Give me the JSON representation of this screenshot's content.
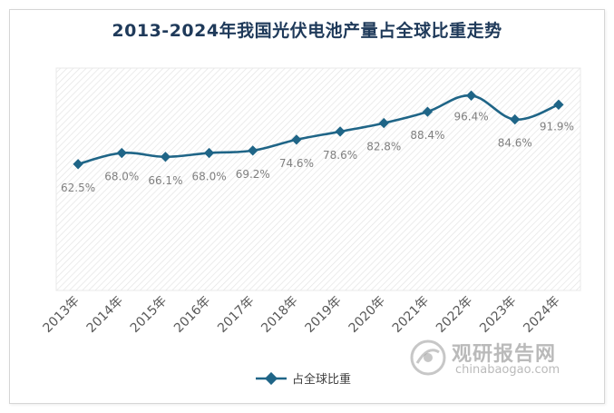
{
  "chart_data": {
    "type": "line",
    "title": "2013-2024年我国光伏电池产量占全球比重走势",
    "categories": [
      "2013年",
      "2014年",
      "2015年",
      "2016年",
      "2017年",
      "2018年",
      "2019年",
      "2020年",
      "2021年",
      "2022年",
      "2023年",
      "2024年"
    ],
    "series": [
      {
        "name": "占全球比重",
        "values": [
          62.5,
          68.0,
          66.1,
          68.0,
          69.2,
          74.6,
          78.6,
          82.8,
          88.4,
          96.4,
          84.6,
          91.9
        ],
        "labels": [
          "62.5%",
          "68.0%",
          "66.1%",
          "68.0%",
          "69.2%",
          "74.6%",
          "78.6%",
          "82.8%",
          "88.4%",
          "96.4%",
          "84.6%",
          "91.9%"
        ]
      }
    ],
    "xlabel": "",
    "ylabel": "",
    "ylim": [
      0,
      100
    ],
    "grid": false,
    "legend": "bottom",
    "line_color": "#1f6587"
  },
  "watermark": {
    "cn": "观研报告网",
    "en": "chinabaogao.com"
  }
}
